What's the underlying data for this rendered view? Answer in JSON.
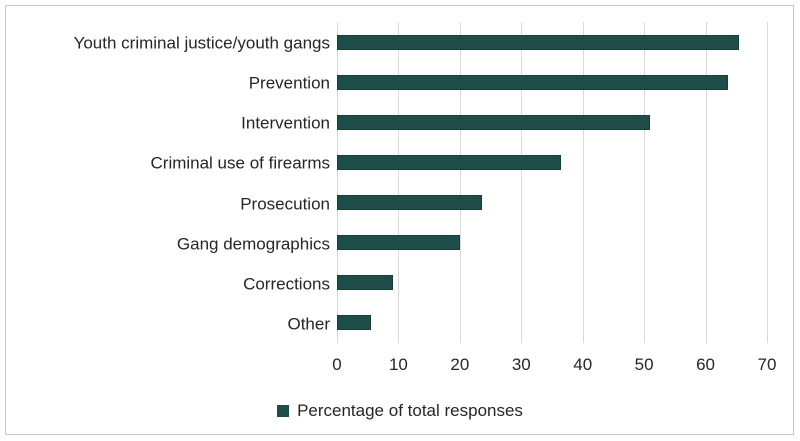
{
  "figure": {
    "background": "#ffffff",
    "frame_border_color": "#c9c9c9"
  },
  "chart_data": {
    "type": "bar",
    "orientation": "horizontal",
    "title": "",
    "xlabel": "",
    "ylabel": "",
    "categories": [
      "Youth criminal justice/youth gangs",
      "Prevention",
      "Intervention",
      "Criminal use of firearms",
      "Prosecution",
      "Gang demographics",
      "Corrections",
      "Other"
    ],
    "values": [
      65.5,
      63.6,
      50.9,
      36.4,
      23.6,
      20.0,
      9.1,
      5.5
    ],
    "series_name": "Percentage of total responses",
    "xlim": [
      0,
      70
    ],
    "x_ticks": [
      0,
      10,
      20,
      30,
      40,
      50,
      60,
      70
    ],
    "grid": "vertical-only",
    "legend_position": "bottom-center",
    "bar_color": "#1f4e4a",
    "bar_border_color": "#183d3a",
    "gridline_color": "#d9d9d9",
    "text_color": "#262626"
  },
  "legend": {
    "label": "Percentage of total responses"
  }
}
